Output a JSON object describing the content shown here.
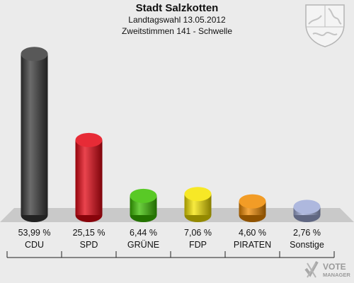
{
  "header": {
    "title": "Stadt Salzkotten",
    "subtitle1": "Landtagswahl 13.05.2012",
    "subtitle2": "Zweitstimmen 141 - Schwelle"
  },
  "brand": {
    "line1": "VOTE",
    "line2": "MANAGER"
  },
  "chart_data": {
    "type": "bar",
    "title": "Stadt Salzkotten",
    "categories": [
      "CDU",
      "SPD",
      "GRÜNE",
      "FDP",
      "PIRATEN",
      "Sonstige"
    ],
    "values": [
      53.99,
      25.15,
      6.44,
      7.06,
      4.6,
      2.76
    ],
    "value_labels": [
      "53,99 %",
      "25,15 %",
      "6,44 %",
      "7,06 %",
      "4,60 %",
      "2,76 %"
    ],
    "colors": [
      "#3a3a3a",
      "#e30613",
      "#3cbf00",
      "#f5e400",
      "#f08a00",
      "#a0acd8"
    ],
    "ylim": [
      0,
      55
    ],
    "grid": false,
    "legend": "none"
  }
}
